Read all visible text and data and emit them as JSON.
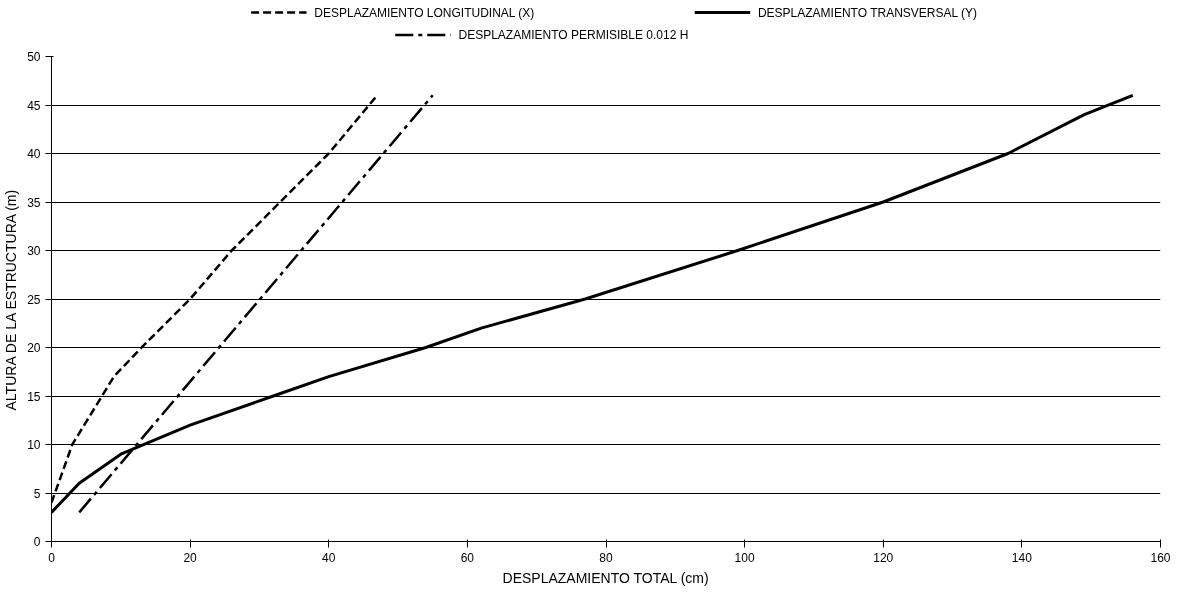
{
  "chart_data": {
    "type": "line",
    "xlabel": "DESPLAZAMIENTO TOTAL (cm)",
    "ylabel": "ALTURA DE LA ESTRUCTURA (m)",
    "xlim": [
      0,
      160
    ],
    "xticks": [
      0,
      20,
      40,
      60,
      80,
      100,
      120,
      140,
      160
    ],
    "ylim": [
      0,
      50
    ],
    "yticks": [
      0,
      5,
      10,
      15,
      20,
      25,
      30,
      35,
      40,
      45,
      50
    ],
    "grid": "y",
    "legend": "top",
    "marker": "none",
    "series": [
      {
        "name": "DESPLAZAMIENTO LONGITUDINAL (X)",
        "color": "#000000",
        "line_style": "dashed",
        "x": [
          0,
          1,
          3,
          9,
          13,
          20,
          26,
          33,
          40,
          47
        ],
        "values": [
          4,
          6,
          10,
          17,
          20,
          25,
          30,
          35,
          40,
          46
        ]
      },
      {
        "name": "DESPLAZAMIENTO TRANSVERSAL (Y)",
        "color": "#000000",
        "line_style": "solid",
        "x": [
          0,
          4,
          10,
          20,
          32,
          40,
          54,
          62,
          77,
          99,
          120,
          138,
          149,
          156
        ],
        "values": [
          3,
          6,
          9,
          12,
          15,
          17,
          20,
          22,
          25,
          30,
          35,
          40,
          44,
          46
        ]
      },
      {
        "name": "DESPLAZAMIENTO PERMISIBLE 0.012 H",
        "color": "#000000",
        "line_style": "dashdot",
        "x": [
          4,
          55
        ],
        "values": [
          3,
          46
        ]
      }
    ]
  }
}
